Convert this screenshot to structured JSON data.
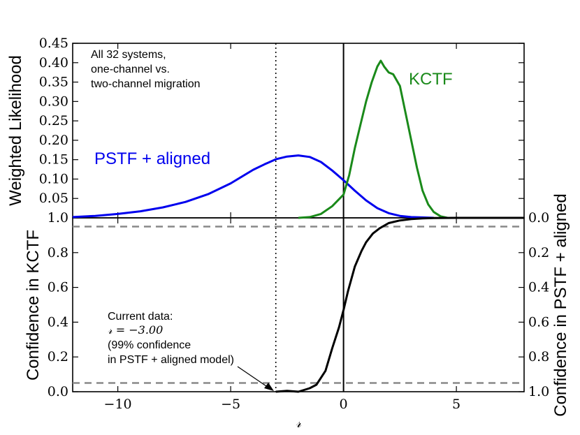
{
  "chart_data": [
    {
      "type": "line",
      "panel": "top",
      "ylabel": "Weighted Likelihood",
      "xlim": [
        -12,
        8
      ],
      "ylim": [
        0,
        0.45
      ],
      "yticks": [
        0.05,
        0.1,
        0.15,
        0.2,
        0.25,
        0.3,
        0.35,
        0.4,
        0.45
      ],
      "ytick_labels": [
        "0.05",
        "0.10",
        "0.15",
        "0.20",
        "0.25",
        "0.30",
        "0.35",
        "0.40",
        "0.45"
      ],
      "annotation_lines": [
        "All 32 systems,",
        "one-channel vs.",
        "two-channel migration"
      ],
      "series": [
        {
          "name": "PSTF + aligned",
          "color": "#0000ee",
          "x": [
            -12,
            -11,
            -10,
            -9,
            -8,
            -7,
            -6,
            -5,
            -4,
            -3.5,
            -3,
            -2.5,
            -2,
            -1.5,
            -1,
            -0.5,
            0,
            0.5,
            1,
            1.5,
            2,
            2.5,
            3,
            3.5,
            4
          ],
          "y": [
            0.002,
            0.005,
            0.01,
            0.017,
            0.027,
            0.041,
            0.061,
            0.089,
            0.124,
            0.138,
            0.151,
            0.158,
            0.161,
            0.157,
            0.144,
            0.122,
            0.097,
            0.07,
            0.045,
            0.025,
            0.012,
            0.005,
            0.002,
            0.001,
            0.0
          ]
        },
        {
          "name": "KCTF",
          "color": "#1a8a1a",
          "x": [
            -2,
            -1.5,
            -1,
            -0.5,
            0,
            0.25,
            0.5,
            0.75,
            1,
            1.25,
            1.5,
            1.65,
            1.8,
            2,
            2.2,
            2.5,
            2.75,
            3,
            3.25,
            3.5,
            3.75,
            4,
            4.3,
            4.6
          ],
          "y": [
            0.0,
            0.002,
            0.01,
            0.03,
            0.06,
            0.11,
            0.18,
            0.24,
            0.3,
            0.35,
            0.39,
            0.405,
            0.39,
            0.375,
            0.37,
            0.34,
            0.27,
            0.2,
            0.13,
            0.07,
            0.035,
            0.015,
            0.004,
            0.0
          ]
        }
      ]
    },
    {
      "type": "line",
      "panel": "bottom",
      "xlabel": "𝓇",
      "ylabel": "Confidence in KCTF",
      "ylabel_right": "Confidence in PSTF + aligned",
      "xlim": [
        -12,
        8
      ],
      "ylim": [
        0,
        1
      ],
      "xticks": [
        -10,
        -5,
        0,
        5
      ],
      "xtick_labels": [
        "−10",
        "−5",
        "0",
        "5"
      ],
      "yticks": [
        0.0,
        0.2,
        0.4,
        0.6,
        0.8,
        1.0
      ],
      "ytick_labels": [
        "0.0",
        "0.2",
        "0.4",
        "0.6",
        "0.8",
        "1.0"
      ],
      "yticks_right_labels": [
        "1.0",
        "0.8",
        "0.6",
        "0.4",
        "0.2",
        "0.0"
      ],
      "reference_lines": [
        0.05,
        0.95
      ],
      "current_value": -3.0,
      "annotation_lines": [
        "Current data:",
        "𝓇 = −3.00",
        "(99% confidence",
        "in PSTF + aligned model)"
      ],
      "series": [
        {
          "name": "Confidence in KCTF",
          "color": "#000000",
          "x": [
            -3,
            -2.5,
            -2,
            -1.5,
            -1.2,
            -1.0,
            -0.8,
            -0.5,
            -0.2,
            0,
            0.2,
            0.5,
            0.8,
            1.0,
            1.3,
            1.6,
            2.0,
            2.5,
            3.0,
            3.5,
            4.0,
            5.0,
            8.0
          ],
          "y": [
            0.0,
            0.005,
            0.0,
            0.02,
            0.04,
            0.08,
            0.12,
            0.25,
            0.37,
            0.47,
            0.58,
            0.72,
            0.81,
            0.86,
            0.91,
            0.94,
            0.97,
            0.985,
            0.993,
            0.997,
            0.999,
            1.0,
            1.0
          ]
        }
      ]
    }
  ]
}
